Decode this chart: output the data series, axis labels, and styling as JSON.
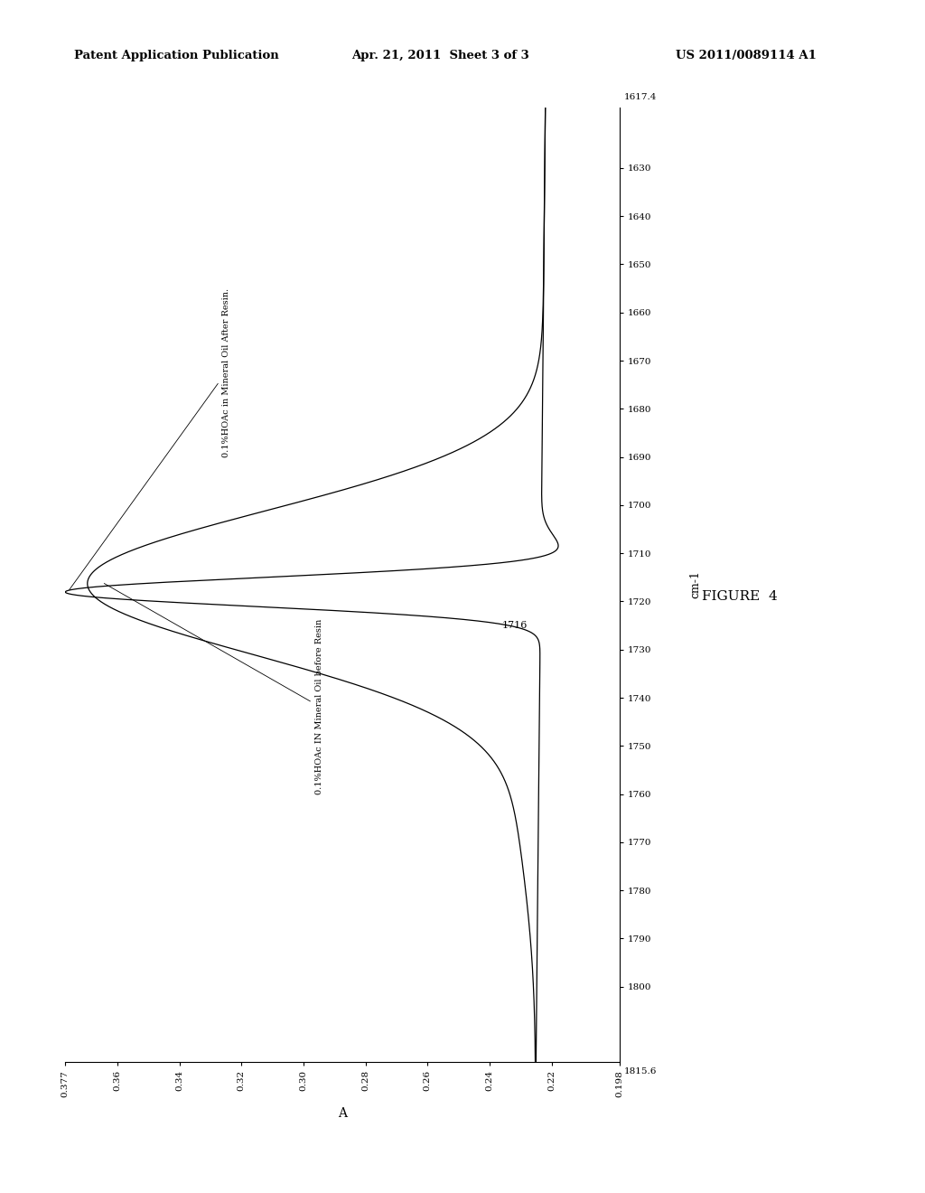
{
  "header_left": "Patent Application Publication",
  "header_center": "Apr. 21, 2011  Sheet 3 of 3",
  "header_right": "US 2011/0089114 A1",
  "figure_label": "FIGURE  4",
  "a_label": "A",
  "cm_label": "cm-1",
  "ymin": 0.198,
  "ymax": 0.377,
  "yticks": [
    0.377,
    0.36,
    0.34,
    0.32,
    0.3,
    0.28,
    0.26,
    0.24,
    0.22,
    0.198
  ],
  "ytick_labels": [
    "0.377",
    "0.36",
    "0.34",
    "0.32",
    "0.30",
    "0.28",
    "0.26",
    "0.24",
    "0.22",
    "0.198"
  ],
  "xmin": 1617.4,
  "xmax": 1815.6,
  "xticks": [
    1800,
    1790,
    1780,
    1770,
    1760,
    1750,
    1740,
    1730,
    1720,
    1710,
    1700,
    1690,
    1680,
    1670,
    1660,
    1650,
    1640,
    1630
  ],
  "xtick_labels": [
    "1800",
    "1790",
    "1780",
    "1770",
    "1760",
    "1750",
    "1740",
    "1730",
    "1720",
    "1710",
    "1700",
    "1690",
    "1680",
    "1670",
    "1660",
    "1650",
    "1640",
    "1630"
  ],
  "label1": "0.1%HOAc IN Mineral Oil before Resin",
  "label2": "0.1%HOAc in Mineral Oil After Resin.",
  "peak_label": "1716",
  "background_color": "#ffffff",
  "line_color": "#000000",
  "xmin_label": "1617.4",
  "xmax_label": "1815.6"
}
